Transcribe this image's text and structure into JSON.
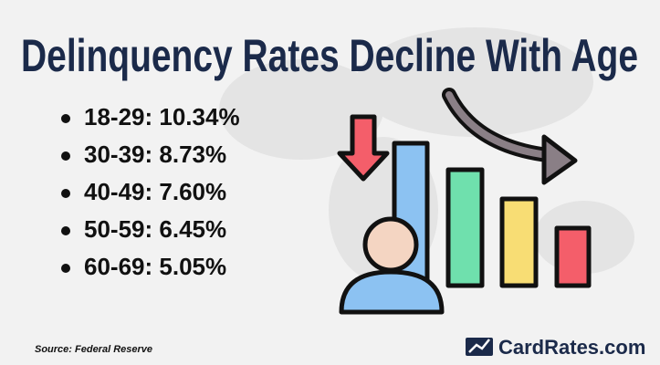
{
  "header": {
    "title": "Delinquency Rates Decline With Age"
  },
  "list": {
    "items": [
      "18-29: 10.34%",
      "30-39: 8.73%",
      "40-49: 7.60%",
      "50-59: 6.45%",
      "60-69: 5.05%"
    ]
  },
  "footer": {
    "source": "Source: Federal Reserve",
    "brand": "CardRates.com"
  }
}
